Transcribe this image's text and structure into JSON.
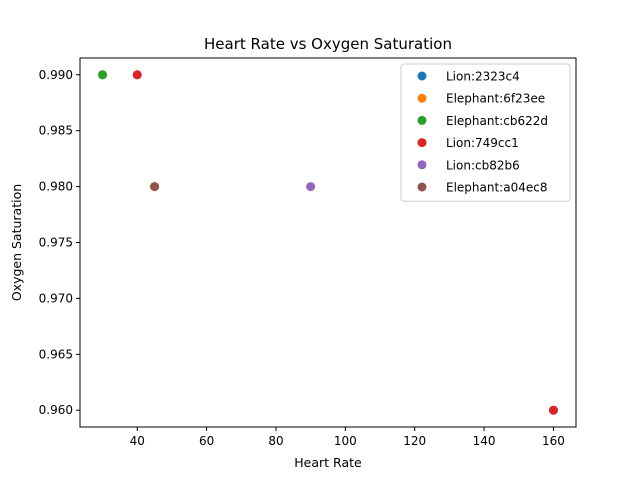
{
  "chart_data": {
    "type": "scatter",
    "title": "Heart Rate vs Oxygen Saturation",
    "xlabel": "Heart Rate",
    "ylabel": "Oxygen Saturation",
    "xlim": [
      23.5,
      166.5
    ],
    "ylim": [
      0.9585,
      0.9915
    ],
    "x_ticks": [
      40,
      60,
      80,
      100,
      120,
      140,
      160
    ],
    "y_ticks": [
      0.96,
      0.965,
      0.97,
      0.975,
      0.98,
      0.985,
      0.99
    ],
    "y_tick_format": 3,
    "grid": false,
    "legend_position": "top-right",
    "series": [
      {
        "name": "Lion:2323c4",
        "color": "#1f77b4",
        "points": [
          [
            40,
            0.99
          ],
          [
            160,
            0.96
          ]
        ]
      },
      {
        "name": "Elephant:6f23ee",
        "color": "#ff7f0e",
        "points": [
          [
            30,
            0.99
          ],
          [
            45,
            0.98
          ]
        ]
      },
      {
        "name": "Elephant:cb622d",
        "color": "#2ca02c",
        "points": [
          [
            30,
            0.99
          ]
        ]
      },
      {
        "name": "Lion:749cc1",
        "color": "#d62728",
        "points": [
          [
            40,
            0.99
          ],
          [
            160,
            0.96
          ]
        ]
      },
      {
        "name": "Lion:cb82b6",
        "color": "#9467bd",
        "points": [
          [
            90,
            0.98
          ]
        ]
      },
      {
        "name": "Elephant:a04ec8",
        "color": "#8c564b",
        "points": [
          [
            45,
            0.98
          ]
        ]
      }
    ]
  }
}
